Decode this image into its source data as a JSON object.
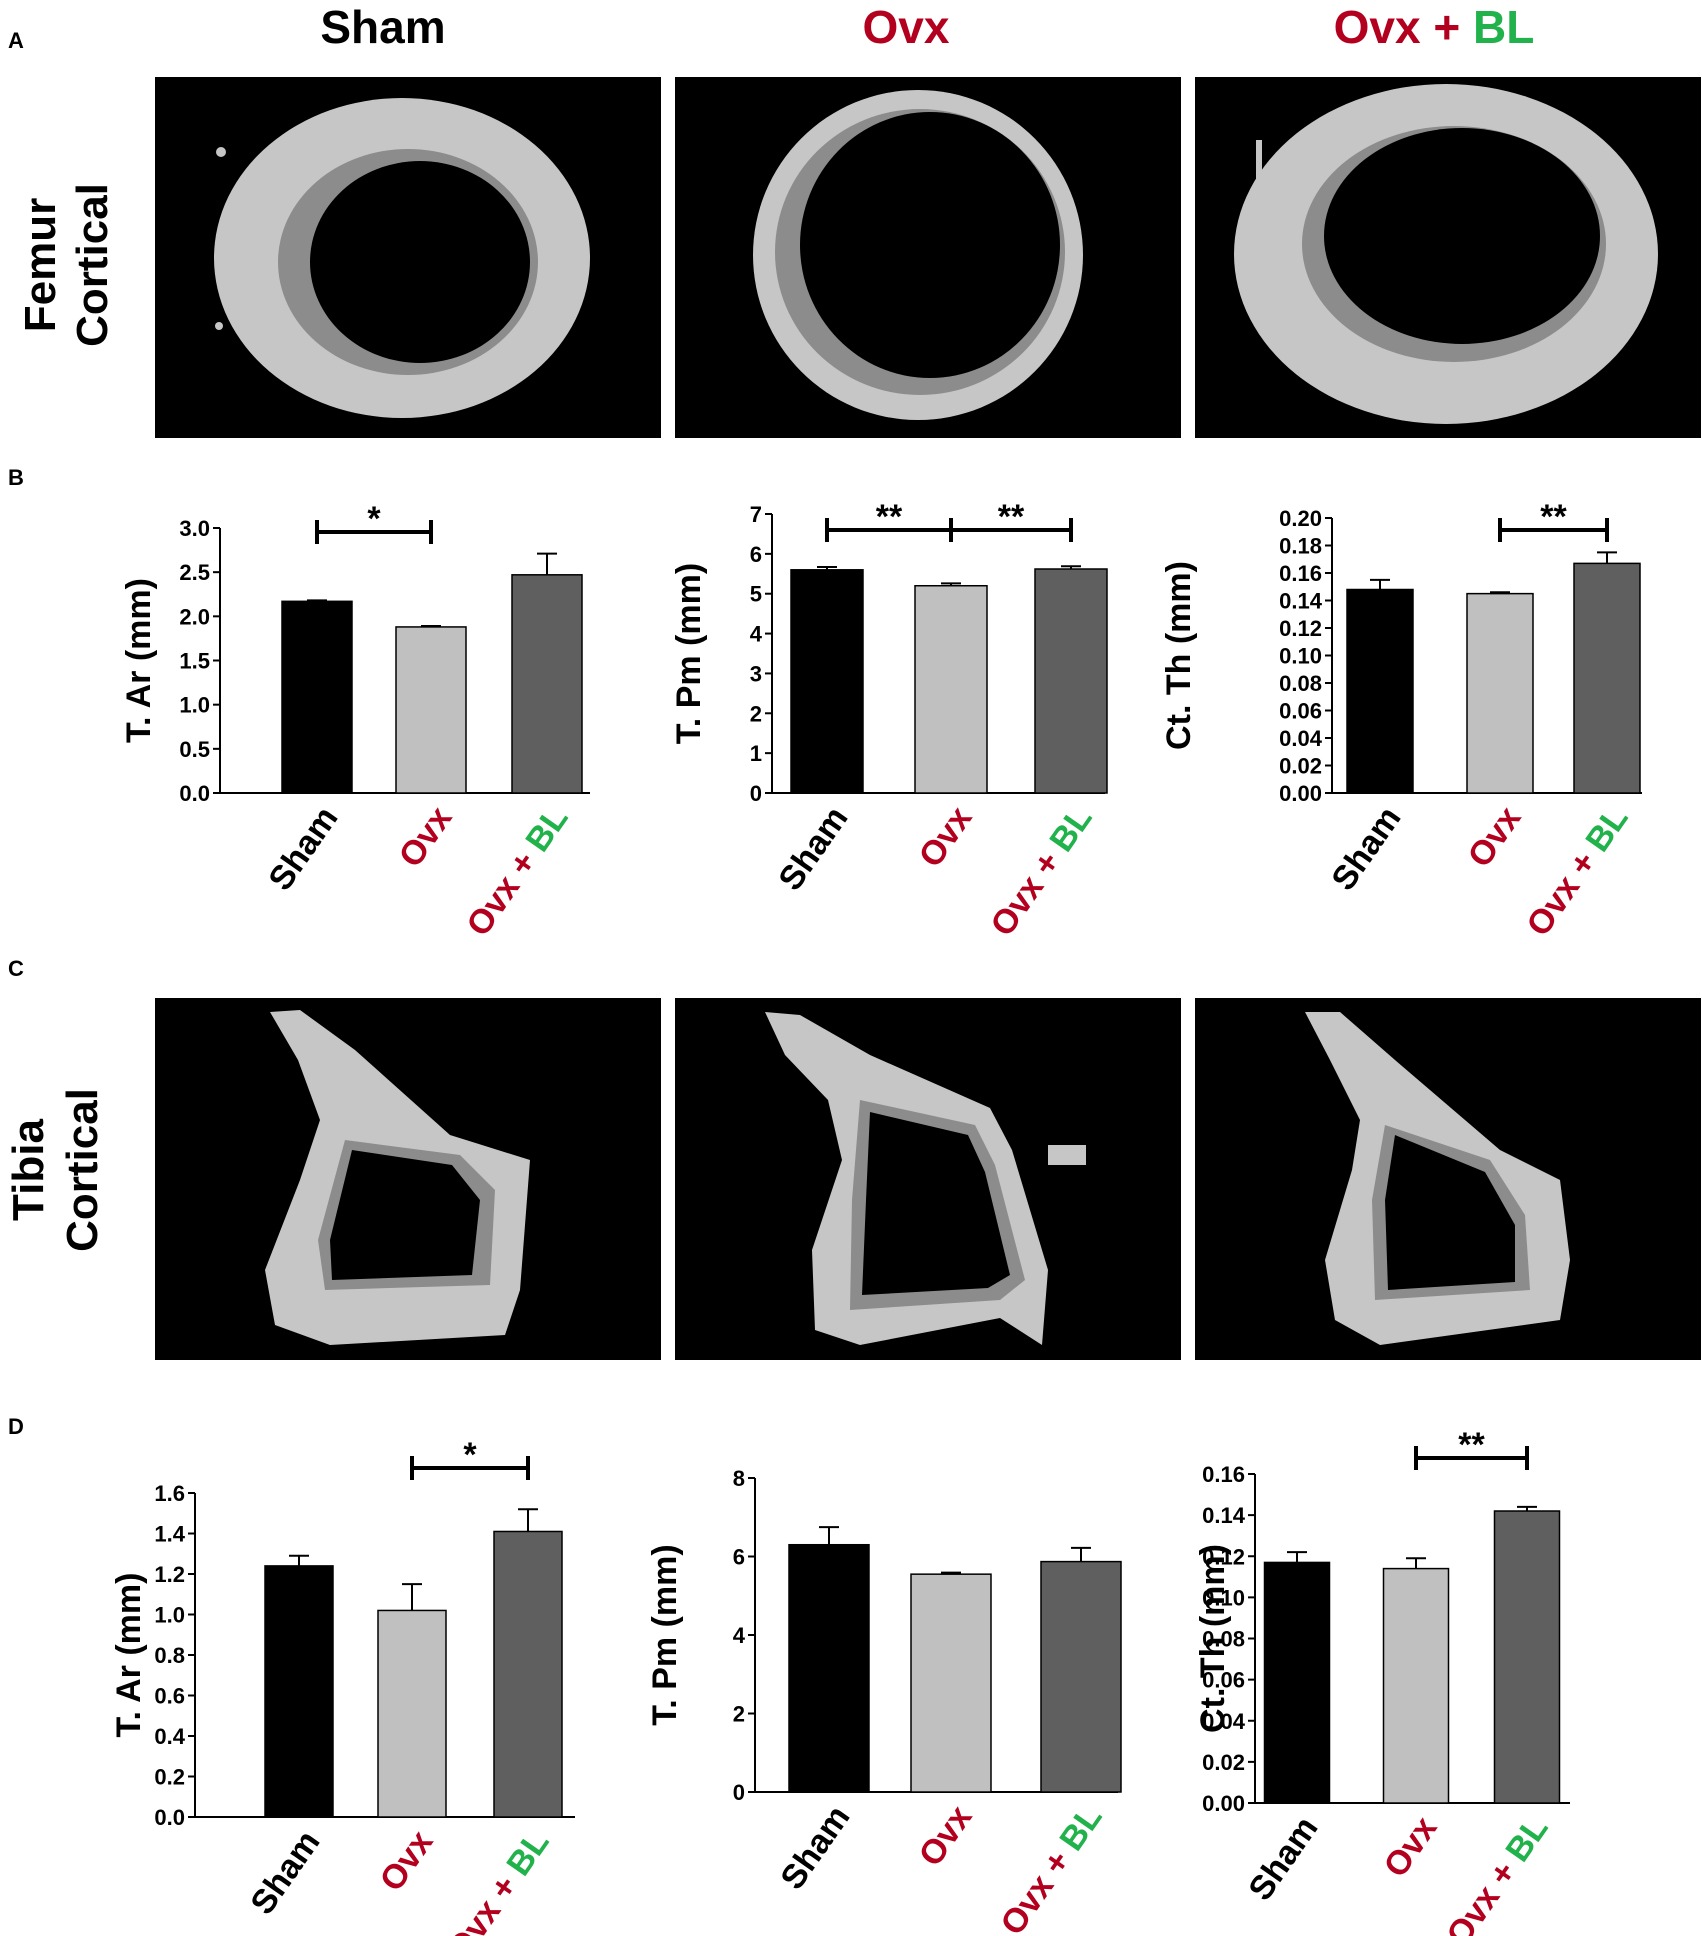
{
  "figure": {
    "colors": {
      "sham": "#000000",
      "ovx": "#c0c0c0",
      "ovx_bl": "#5f5f5f",
      "label_red": "#b2001e",
      "label_green": "#21b24b",
      "bone_light": "#c6c6c6",
      "bone_dark": "#8c8c8c"
    },
    "columns": [
      {
        "text": [
          {
            "t": "Sham",
            "c": "black"
          }
        ]
      },
      {
        "text": [
          {
            "t": "Ovx",
            "c": "red"
          }
        ]
      },
      {
        "text": [
          {
            "t": "Ovx + ",
            "c": "red"
          },
          {
            "t": "BL",
            "c": "green"
          }
        ]
      }
    ],
    "panel_letters": [
      "A",
      "B",
      "C",
      "D"
    ],
    "row_labels": [
      {
        "line1": "Femur",
        "line2": "Cortical"
      },
      {
        "line1": "Tibia",
        "line2": "Cortical"
      }
    ],
    "tick_labels": [
      [
        {
          "t": "Sham",
          "c": "black"
        }
      ],
      [
        {
          "t": "Ovx",
          "c": "red"
        }
      ],
      [
        {
          "t": "Ovx + ",
          "c": "red"
        },
        {
          "t": "BL",
          "c": "green"
        }
      ]
    ]
  },
  "chart_data": [
    {
      "type": "bar",
      "panel": "B",
      "categories": [
        "Sham",
        "Ovx",
        "Ovx + BL"
      ],
      "values": [
        2.17,
        1.88,
        2.47
      ],
      "errors": [
        0.01,
        0.01,
        0.24
      ],
      "ylabel": "T. Ar (mm)",
      "ylim": [
        0,
        3.0
      ],
      "yticks": [
        "0.0",
        "0.5",
        "1.0",
        "1.5",
        "2.0",
        "2.5",
        "3.0"
      ],
      "significance": [
        {
          "from": 0,
          "to": 1,
          "label": "*"
        }
      ]
    },
    {
      "type": "bar",
      "panel": "B",
      "categories": [
        "Sham",
        "Ovx",
        "Ovx + BL"
      ],
      "values": [
        5.6,
        5.2,
        5.62
      ],
      "errors": [
        0.07,
        0.06,
        0.07
      ],
      "ylabel": "T. Pm (mm)",
      "ylim": [
        0,
        7
      ],
      "yticks": [
        "0",
        "1",
        "2",
        "3",
        "4",
        "5",
        "6",
        "7"
      ],
      "significance": [
        {
          "from": 0,
          "to": 1,
          "label": "**"
        },
        {
          "from": 1,
          "to": 2,
          "label": "**"
        }
      ]
    },
    {
      "type": "bar",
      "panel": "B",
      "categories": [
        "Sham",
        "Ovx",
        "Ovx + BL"
      ],
      "values": [
        0.148,
        0.145,
        0.167
      ],
      "errors": [
        0.007,
        0.001,
        0.008
      ],
      "ylabel": "Ct. Th (mm)",
      "ylim": [
        0,
        0.2
      ],
      "yticks": [
        "0.00",
        "0.02",
        "0.04",
        "0.06",
        "0.08",
        "0.10",
        "0.12",
        "0.14",
        "0.16",
        "0.18",
        "0.20"
      ],
      "significance": [
        {
          "from": 1,
          "to": 2,
          "label": "**"
        }
      ]
    },
    {
      "type": "bar",
      "panel": "D",
      "categories": [
        "Sham",
        "Ovx",
        "Ovx + BL"
      ],
      "values": [
        1.24,
        1.02,
        1.41
      ],
      "errors": [
        0.05,
        0.13,
        0.11
      ],
      "ylabel": "T. Ar (mm)",
      "ylim": [
        0,
        1.6
      ],
      "yticks": [
        "0.0",
        "0.2",
        "0.4",
        "0.6",
        "0.8",
        "1.0",
        "1.2",
        "1.4",
        "1.6"
      ],
      "significance": [
        {
          "from": 1,
          "to": 2,
          "label": "*"
        }
      ]
    },
    {
      "type": "bar",
      "panel": "D",
      "categories": [
        "Sham",
        "Ovx",
        "Ovx + BL"
      ],
      "values": [
        6.3,
        5.55,
        5.87
      ],
      "errors": [
        0.45,
        0.04,
        0.35
      ],
      "ylabel": "T. Pm (mm)",
      "ylim": [
        0,
        8
      ],
      "yticks": [
        "0",
        "2",
        "4",
        "6",
        "8"
      ],
      "significance": []
    },
    {
      "type": "bar",
      "panel": "D",
      "categories": [
        "Sham",
        "Ovx",
        "Ovx + BL"
      ],
      "values": [
        0.117,
        0.114,
        0.142
      ],
      "errors": [
        0.005,
        0.005,
        0.002
      ],
      "ylabel": "Ct. Th (mm)",
      "ylim": [
        0,
        0.16
      ],
      "yticks": [
        "0.00",
        "0.02",
        "0.04",
        "0.06",
        "0.08",
        "0.10",
        "0.12",
        "0.14",
        "0.16"
      ],
      "significance": [
        {
          "from": 1,
          "to": 2,
          "label": "**"
        }
      ]
    }
  ]
}
